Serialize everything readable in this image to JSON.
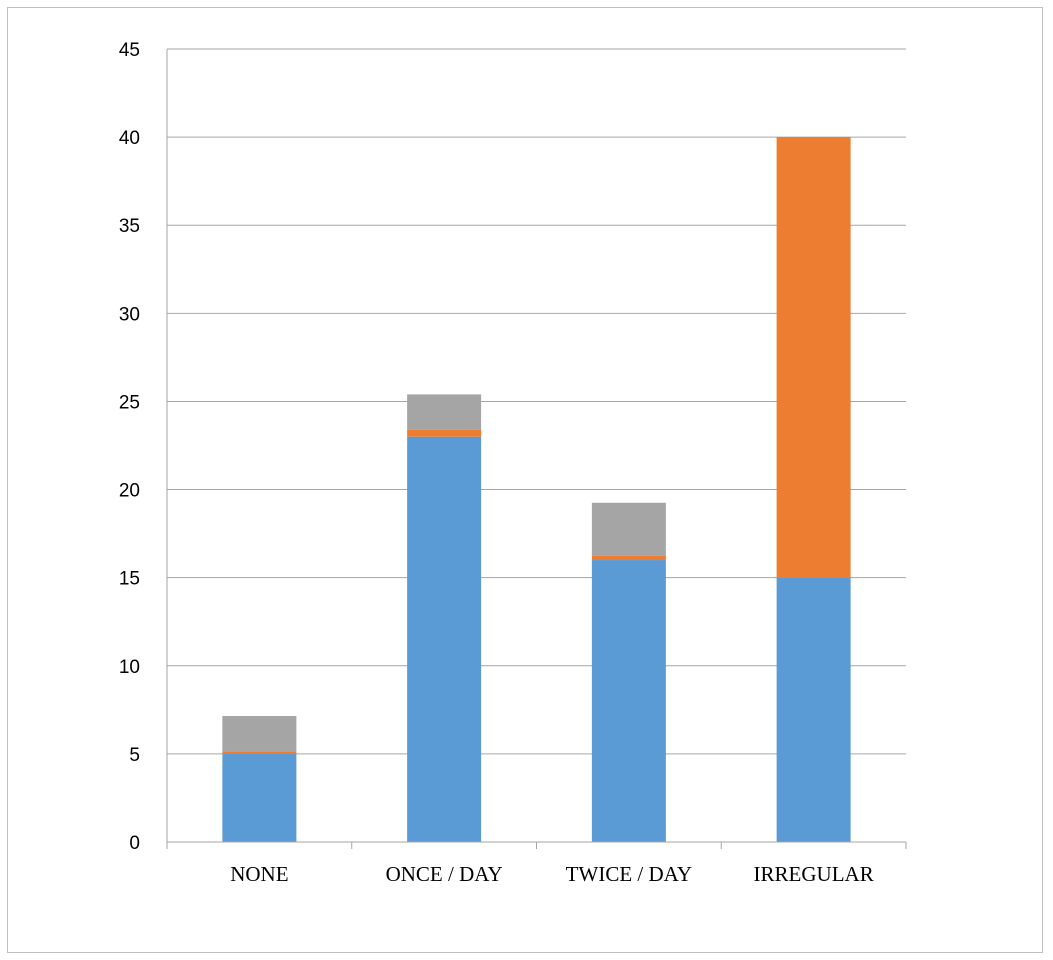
{
  "chart_data": {
    "type": "bar",
    "stacked": true,
    "title": "",
    "xlabel": "",
    "ylabel": "",
    "categories": [
      "NONE",
      "ONCE / DAY",
      "TWICE / DAY",
      "IRREGULAR"
    ],
    "series": [
      {
        "color": "#5b9bd5",
        "values": [
          5,
          23,
          16,
          15
        ]
      },
      {
        "color": "#ed7d31",
        "values": [
          0.15,
          0.4,
          0.25,
          25
        ]
      },
      {
        "color": "#a5a5a5",
        "values": [
          2,
          2,
          3,
          0
        ]
      }
    ],
    "ylim": [
      0,
      45
    ],
    "yticks": [
      "0",
      "5",
      "10",
      "15",
      "20",
      "25",
      "30",
      "35",
      "40",
      "45"
    ],
    "grid": true,
    "legend": "none"
  }
}
